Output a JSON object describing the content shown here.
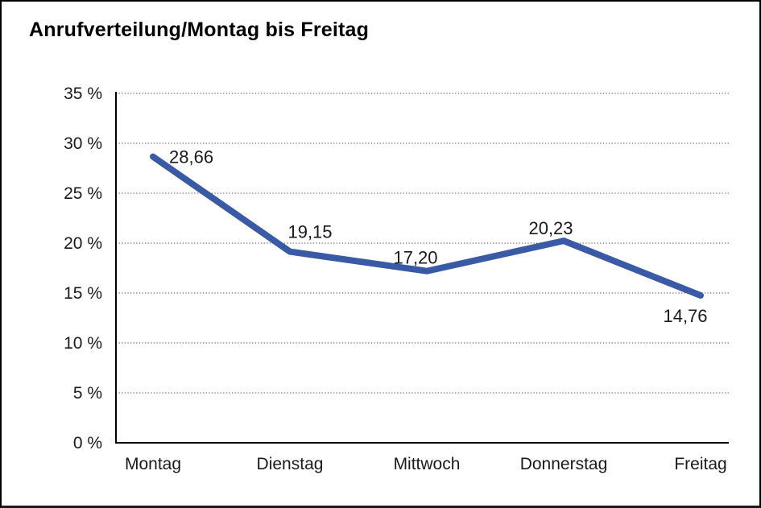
{
  "chart_data": {
    "type": "line",
    "title": "Anrufverteilung/Montag bis Freitag",
    "categories": [
      "Montag",
      "Dienstag",
      "Mittwoch",
      "Donnerstag",
      "Freitag"
    ],
    "values": [
      28.66,
      19.15,
      17.2,
      20.23,
      14.76
    ],
    "point_labels": [
      "28,66",
      "19,15",
      "17,20",
      "20,23",
      "14,76"
    ],
    "y_ticks": [
      0,
      5,
      10,
      15,
      20,
      25,
      30,
      35
    ],
    "y_tick_labels": [
      "0 %",
      "5 %",
      "10 %",
      "15 %",
      "20 %",
      "25 %",
      "30 %",
      "35 %"
    ],
    "ylim": [
      0,
      35
    ],
    "xlabel": "",
    "ylabel": "",
    "grid": "dotted-horizontal",
    "legend": "none",
    "series_count": 1,
    "line_color": "#3A5AA5",
    "axis_color": "#000000",
    "grid_color": "#6F6F6F",
    "text_color": "#1A1A1A",
    "background_color": "#FFFFFF"
  }
}
